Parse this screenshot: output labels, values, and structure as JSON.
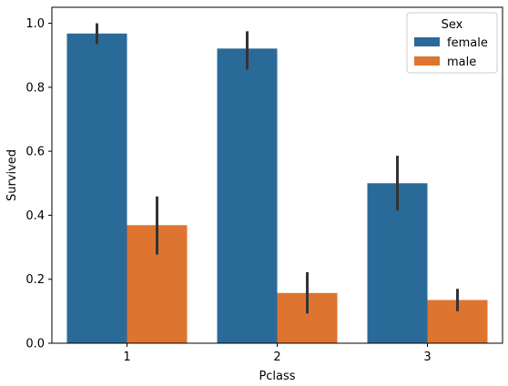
{
  "chart_data": {
    "type": "bar",
    "xlabel": "Pclass",
    "ylabel": "Survived",
    "categories": [
      "1",
      "2",
      "3"
    ],
    "ylim": [
      0,
      1.05
    ],
    "yticks": [
      "0.0",
      "0.2",
      "0.4",
      "0.6",
      "0.8",
      "1.0"
    ],
    "legend": {
      "title": "Sex",
      "placement": "top-right"
    },
    "series": [
      {
        "name": "female",
        "color": "#2a6a99",
        "values": [
          0.968,
          0.921,
          0.5
        ],
        "ci_low": [
          0.935,
          0.855,
          0.415
        ],
        "ci_high": [
          1.0,
          0.975,
          0.586
        ]
      },
      {
        "name": "male",
        "color": "#dd742f",
        "values": [
          0.369,
          0.157,
          0.135
        ],
        "ci_low": [
          0.277,
          0.093,
          0.1
        ],
        "ci_high": [
          0.459,
          0.222,
          0.17
        ]
      }
    ],
    "errorbar_color": "#333333",
    "grid": false
  }
}
